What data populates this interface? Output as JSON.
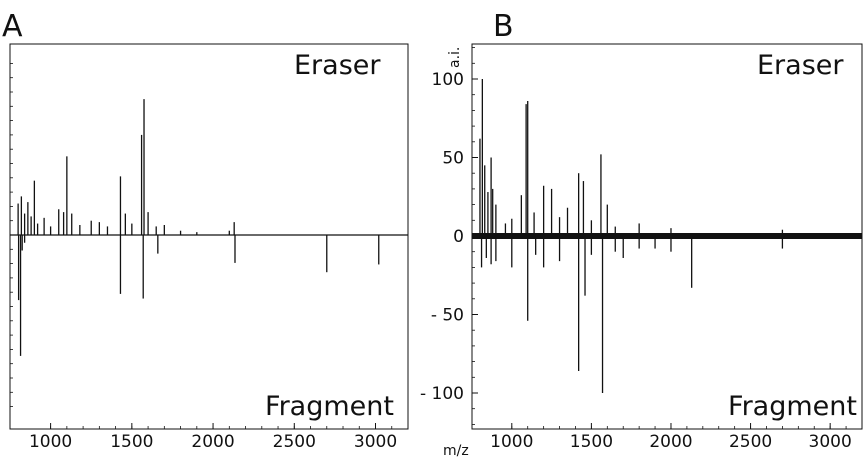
{
  "panel_letters": [
    "A",
    "B"
  ],
  "chart_data": [
    {
      "type": "line",
      "panel": "A",
      "xlim": [
        750,
        3200
      ],
      "ylim": [
        -100,
        125
      ],
      "xticks": [
        1000,
        1500,
        2000,
        2500,
        3000
      ],
      "yticks": [],
      "xlabel": "",
      "ylabel": "",
      "upper_label": "Eraser",
      "lower_label": "Fragment",
      "series": [
        {
          "name": "Eraser",
          "direction": 1,
          "x": [
            800,
            820,
            840,
            860,
            880,
            900,
            920,
            960,
            1000,
            1050,
            1080,
            1100,
            1130,
            1180,
            1250,
            1300,
            1350,
            1430,
            1460,
            1500,
            1560,
            1575,
            1600,
            1650,
            1700,
            1800,
            1900,
            2100,
            2130
          ],
          "y": [
            22,
            27,
            15,
            23,
            13,
            38,
            8,
            12,
            6,
            18,
            16,
            55,
            15,
            7,
            10,
            9,
            6,
            41,
            15,
            8,
            70,
            95,
            16,
            6,
            7,
            3,
            2,
            3,
            9
          ]
        },
        {
          "name": "Fragment",
          "direction": -1,
          "x": [
            803,
            815,
            825,
            840,
            1430,
            1570,
            1660,
            2135,
            2700,
            3020
          ],
          "y": [
            42,
            78,
            10,
            5,
            38,
            41,
            12,
            18,
            24,
            19
          ]
        }
      ]
    },
    {
      "type": "line",
      "panel": "B",
      "xlim": [
        750,
        3200
      ],
      "ylim": [
        -125,
        125
      ],
      "xticks": [
        1000,
        1500,
        2000,
        2500,
        3000
      ],
      "yticks": [
        100,
        50,
        0,
        -50,
        -100
      ],
      "ytick_labels": [
        "100",
        "50",
        "0",
        "- 50",
        "- 100"
      ],
      "xlabel": "m/z",
      "ylabel": "a.i.",
      "upper_label": "Eraser",
      "lower_label": "Fragment",
      "series": [
        {
          "name": "Eraser",
          "direction": 1,
          "x": [
            800,
            815,
            830,
            850,
            870,
            880,
            900,
            960,
            1000,
            1060,
            1090,
            1100,
            1140,
            1200,
            1250,
            1300,
            1350,
            1420,
            1450,
            1500,
            1560,
            1600,
            1650,
            1800,
            2000,
            2700
          ],
          "y": [
            62,
            100,
            45,
            28,
            50,
            30,
            20,
            8,
            11,
            26,
            84,
            86,
            15,
            32,
            30,
            12,
            18,
            40,
            35,
            10,
            52,
            20,
            6,
            8,
            5,
            4
          ]
        },
        {
          "name": "Fragment",
          "direction": -1,
          "x": [
            810,
            840,
            870,
            900,
            1000,
            1100,
            1150,
            1200,
            1300,
            1420,
            1460,
            1500,
            1570,
            1650,
            1700,
            1800,
            1900,
            2000,
            2130,
            2700
          ],
          "y": [
            20,
            14,
            18,
            16,
            20,
            54,
            12,
            20,
            16,
            86,
            38,
            12,
            100,
            10,
            14,
            8,
            8,
            10,
            33,
            8
          ]
        }
      ]
    }
  ]
}
